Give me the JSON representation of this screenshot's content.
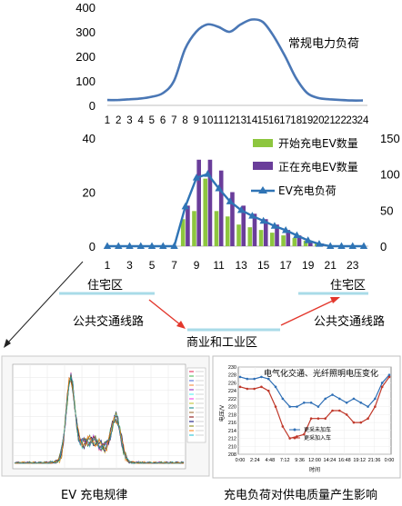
{
  "chart_data": [
    {
      "type": "line",
      "title": "常规电力负荷",
      "x": [
        1,
        2,
        3,
        4,
        5,
        6,
        7,
        8,
        9,
        10,
        11,
        12,
        13,
        14,
        15,
        16,
        17,
        18,
        19,
        20,
        21,
        22,
        23,
        24
      ],
      "values": [
        22,
        22,
        25,
        28,
        35,
        50,
        100,
        230,
        300,
        330,
        320,
        300,
        330,
        350,
        340,
        280,
        200,
        110,
        50,
        30,
        25,
        22,
        20,
        20
      ],
      "ylim": [
        0,
        400
      ],
      "yticks": [
        0,
        100,
        200,
        300,
        400
      ],
      "color": "#4a77b5"
    },
    {
      "type": "bar",
      "categories": [
        1,
        2,
        3,
        4,
        5,
        6,
        7,
        8,
        9,
        10,
        11,
        12,
        13,
        14,
        15,
        16,
        17,
        18,
        19,
        20,
        21,
        22,
        23,
        24
      ],
      "x_tick_labels": [
        1,
        3,
        5,
        7,
        9,
        11,
        13,
        15,
        17,
        19,
        21,
        23
      ],
      "series": [
        {
          "name": "开始充电EV数量",
          "axis": "left",
          "color": "#8dc63f",
          "values": [
            0,
            0,
            0,
            0,
            0,
            0,
            0,
            10,
            13,
            25,
            13,
            11,
            8,
            7,
            6,
            5,
            4,
            3,
            2,
            1,
            0,
            0,
            0,
            0
          ]
        },
        {
          "name": "正在充电EV数量",
          "axis": "left",
          "color": "#6a3d9a",
          "values": [
            0,
            0,
            0,
            0,
            0,
            0,
            0,
            15,
            32,
            32,
            28,
            20,
            15,
            12,
            10,
            8,
            6,
            4,
            2,
            1,
            0,
            0,
            0,
            0
          ]
        },
        {
          "name": "EV充电负荷",
          "axis": "right",
          "type": "line",
          "color": "#2f74b5",
          "values": [
            0,
            0,
            0,
            0,
            0,
            0,
            0,
            55,
            95,
            100,
            80,
            62,
            50,
            42,
            35,
            28,
            22,
            15,
            8,
            3,
            0,
            0,
            0,
            0
          ]
        }
      ],
      "ylim_left": [
        0,
        40
      ],
      "yticks_left": [
        0,
        20,
        40
      ],
      "ylim_right": [
        0,
        150
      ],
      "yticks_right": [
        0,
        50,
        100,
        150
      ],
      "legend_position": "top-right"
    },
    {
      "type": "line",
      "title": "电气化交通、光纤照明电压变化",
      "ylabel": "电压/V",
      "xlabel": "时间",
      "x_tick_labels": [
        "0:00",
        "2:24",
        "4:48",
        "7:12",
        "9:36",
        "12:00",
        "14:24",
        "16:48",
        "19:12",
        "21:36",
        "0:00"
      ],
      "ylim": [
        208,
        230
      ],
      "yticks": [
        208,
        210,
        212,
        214,
        216,
        218,
        220,
        222,
        224,
        226,
        228,
        230
      ],
      "series": [
        {
          "name": "更采未加车",
          "color": "#2f6fb5",
          "values": [
            227.5,
            227,
            227,
            227.5,
            227,
            225,
            222,
            220,
            220,
            221,
            221,
            220,
            222,
            223,
            222,
            221,
            222,
            221,
            220,
            222,
            226,
            228
          ]
        },
        {
          "name": "更采加入车",
          "color": "#c0392b",
          "values": [
            225,
            224.5,
            224.5,
            225,
            224,
            220,
            215,
            212,
            212.5,
            213,
            217,
            217,
            217,
            219,
            219,
            218,
            216,
            216,
            217,
            220,
            225,
            227.5
          ]
        }
      ]
    }
  ],
  "diagram": {
    "nodes": {
      "residential_left": "住宅区",
      "residential_right": "住宅区",
      "transit_left": "公共交通线路",
      "transit_right": "公共交通线路",
      "commercial": "商业和工业区"
    }
  },
  "captions": {
    "left": "EV 充电规律",
    "right": "充电负荷对供电质量产生影响"
  }
}
